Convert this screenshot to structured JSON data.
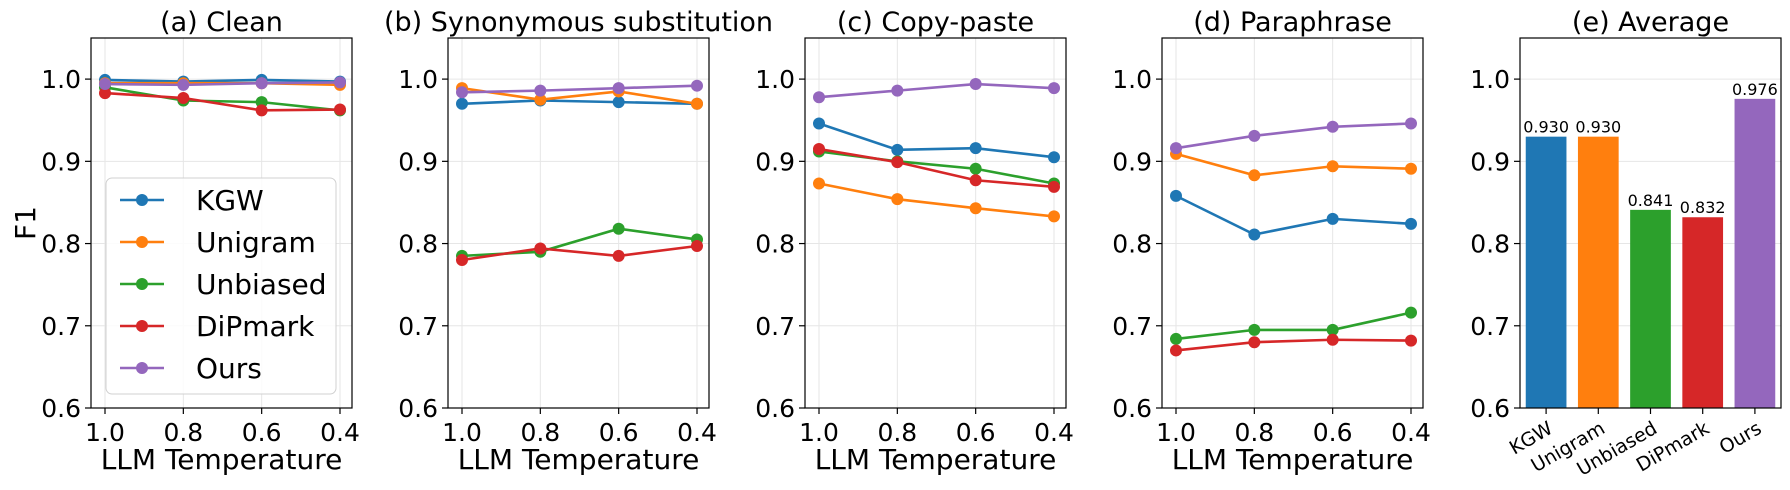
{
  "chart_data": [
    {
      "type": "line",
      "title": "(a) Clean",
      "xlabel": "LLM Temperature",
      "ylabel": "F1",
      "x": [
        1.0,
        0.8,
        0.6,
        0.4
      ],
      "x_tick_labels": [
        "1.0",
        "0.8",
        "0.6",
        "0.4"
      ],
      "ylim": [
        0.6,
        1.05
      ],
      "y_ticks": [
        "0.6",
        "0.7",
        "0.8",
        "0.9",
        "1.0"
      ],
      "legend": "lower-left",
      "series": [
        {
          "name": "KGW",
          "color": "#1f77b4",
          "values": [
            0.999,
            0.997,
            0.999,
            0.997
          ]
        },
        {
          "name": "Unigram",
          "color": "#ff7f0e",
          "values": [
            0.995,
            0.995,
            0.995,
            0.993
          ]
        },
        {
          "name": "Unbiased",
          "color": "#2ca02c",
          "values": [
            0.99,
            0.974,
            0.972,
            0.962
          ]
        },
        {
          "name": "DiPmark",
          "color": "#d62728",
          "values": [
            0.983,
            0.977,
            0.962,
            0.963
          ]
        },
        {
          "name": "Ours",
          "color": "#9467bd",
          "values": [
            0.994,
            0.993,
            0.995,
            0.996
          ]
        }
      ]
    },
    {
      "type": "line",
      "title": "(b) Synonymous substitution",
      "xlabel": "LLM Temperature",
      "x": [
        1.0,
        0.8,
        0.6,
        0.4
      ],
      "x_tick_labels": [
        "1.0",
        "0.8",
        "0.6",
        "0.4"
      ],
      "ylim": [
        0.6,
        1.05
      ],
      "y_ticks": [
        "0.6",
        "0.7",
        "0.8",
        "0.9",
        "1.0"
      ],
      "series": [
        {
          "name": "KGW",
          "color": "#1f77b4",
          "values": [
            0.97,
            0.974,
            0.972,
            0.97
          ]
        },
        {
          "name": "Unigram",
          "color": "#ff7f0e",
          "values": [
            0.989,
            0.975,
            0.985,
            0.97
          ]
        },
        {
          "name": "Unbiased",
          "color": "#2ca02c",
          "values": [
            0.785,
            0.79,
            0.818,
            0.805
          ]
        },
        {
          "name": "DiPmark",
          "color": "#d62728",
          "values": [
            0.78,
            0.794,
            0.785,
            0.797
          ]
        },
        {
          "name": "Ours",
          "color": "#9467bd",
          "values": [
            0.984,
            0.986,
            0.989,
            0.992
          ]
        }
      ]
    },
    {
      "type": "line",
      "title": "(c) Copy-paste",
      "xlabel": "LLM Temperature",
      "x": [
        1.0,
        0.8,
        0.6,
        0.4
      ],
      "x_tick_labels": [
        "1.0",
        "0.8",
        "0.6",
        "0.4"
      ],
      "ylim": [
        0.6,
        1.05
      ],
      "y_ticks": [
        "0.6",
        "0.7",
        "0.8",
        "0.9",
        "1.0"
      ],
      "series": [
        {
          "name": "KGW",
          "color": "#1f77b4",
          "values": [
            0.946,
            0.914,
            0.916,
            0.905
          ]
        },
        {
          "name": "Unigram",
          "color": "#ff7f0e",
          "values": [
            0.873,
            0.854,
            0.843,
            0.833
          ]
        },
        {
          "name": "Unbiased",
          "color": "#2ca02c",
          "values": [
            0.912,
            0.9,
            0.891,
            0.873
          ]
        },
        {
          "name": "DiPmark",
          "color": "#d62728",
          "values": [
            0.915,
            0.899,
            0.877,
            0.869
          ]
        },
        {
          "name": "Ours",
          "color": "#9467bd",
          "values": [
            0.978,
            0.986,
            0.994,
            0.989
          ]
        }
      ]
    },
    {
      "type": "line",
      "title": "(d) Paraphrase",
      "xlabel": "LLM Temperature",
      "x": [
        1.0,
        0.8,
        0.6,
        0.4
      ],
      "x_tick_labels": [
        "1.0",
        "0.8",
        "0.6",
        "0.4"
      ],
      "ylim": [
        0.6,
        1.05
      ],
      "y_ticks": [
        "0.6",
        "0.7",
        "0.8",
        "0.9",
        "1.0"
      ],
      "series": [
        {
          "name": "KGW",
          "color": "#1f77b4",
          "values": [
            0.858,
            0.811,
            0.83,
            0.824
          ]
        },
        {
          "name": "Unigram",
          "color": "#ff7f0e",
          "values": [
            0.909,
            0.883,
            0.894,
            0.891
          ]
        },
        {
          "name": "Unbiased",
          "color": "#2ca02c",
          "values": [
            0.684,
            0.695,
            0.695,
            0.716
          ]
        },
        {
          "name": "DiPmark",
          "color": "#d62728",
          "values": [
            0.67,
            0.68,
            0.683,
            0.682
          ]
        },
        {
          "name": "Ours",
          "color": "#9467bd",
          "values": [
            0.916,
            0.931,
            0.942,
            0.946
          ]
        }
      ]
    },
    {
      "type": "bar",
      "title": "(e) Average",
      "categories": [
        "KGW",
        "Unigram",
        "Unbiased",
        "DiPmark",
        "Ours"
      ],
      "values": [
        0.93,
        0.93,
        0.841,
        0.832,
        0.976
      ],
      "value_labels": [
        "0.930",
        "0.930",
        "0.841",
        "0.832",
        "0.976"
      ],
      "colors": [
        "#1f77b4",
        "#ff7f0e",
        "#2ca02c",
        "#d62728",
        "#9467bd"
      ],
      "ylim": [
        0.6,
        1.05
      ],
      "y_ticks": [
        "0.6",
        "0.7",
        "0.8",
        "0.9",
        "1.0"
      ]
    }
  ]
}
